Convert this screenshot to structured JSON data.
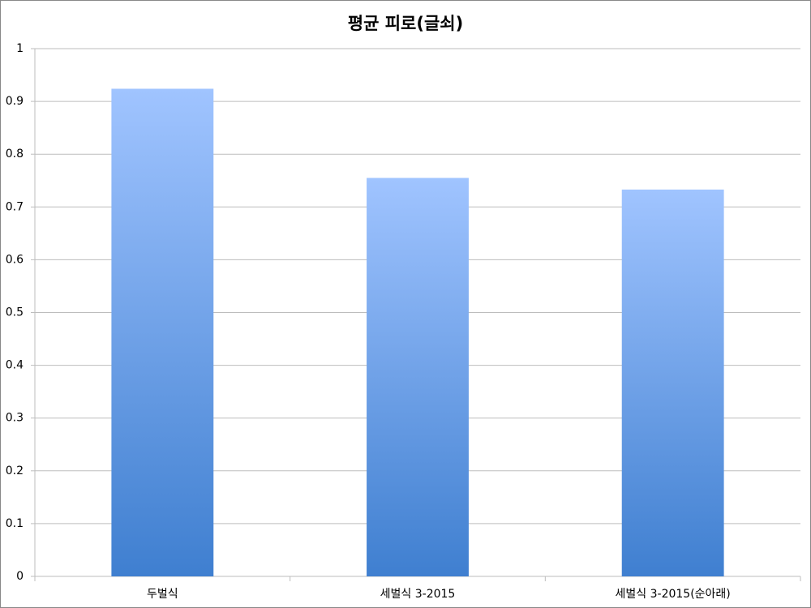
{
  "chart_data": {
    "type": "bar",
    "title": "평균 피로(글쇠)",
    "categories": [
      "두벌식",
      "세벌식 3-2015",
      "세벌식 3-2015(순아래)"
    ],
    "values": [
      0.924,
      0.755,
      0.733
    ],
    "gradient": [
      "#a0c4ff",
      "#3f7fd0"
    ],
    "ylim": [
      0,
      1
    ],
    "yticks": [
      0,
      0.1,
      0.2,
      0.3,
      0.4,
      0.5,
      0.6,
      0.7,
      0.8,
      0.9,
      1
    ],
    "grid": true
  }
}
